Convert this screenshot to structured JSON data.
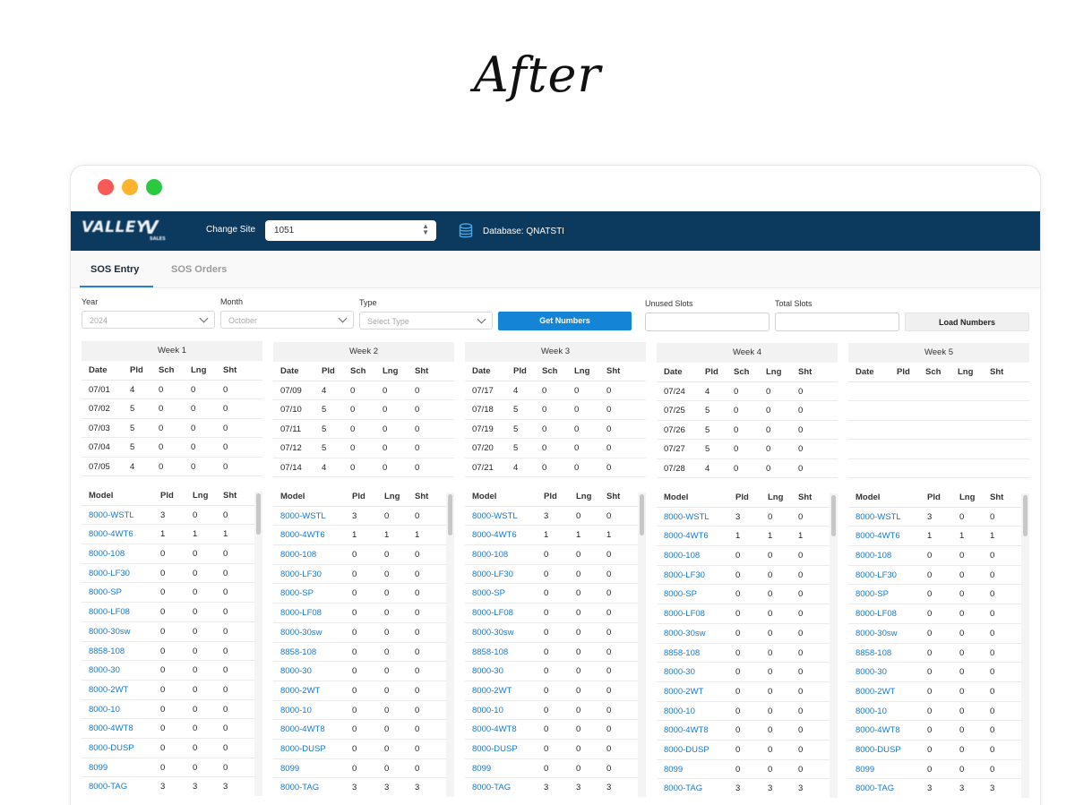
{
  "heading": "After",
  "appbar": {
    "logo_text": "VALLEY",
    "logo_mark": "V",
    "logo_sub": "SALES",
    "site_label": "Change Site",
    "site_value": "1051",
    "db_icon": "database-icon",
    "database_label": "Database: QNATSTI"
  },
  "tabs": [
    {
      "label": "SOS Entry",
      "active": true
    },
    {
      "label": "SOS Orders",
      "active": false
    }
  ],
  "filters": {
    "year_label": "Year",
    "year_value": "2024",
    "month_label": "Month",
    "month_value": "October",
    "type_label": "Type",
    "type_placeholder": "Select Type",
    "get_numbers": "Get Numbers",
    "unused_label": "Unused Slots",
    "total_label": "Total Slots",
    "load_numbers": "Load Numbers"
  },
  "date_columns": [
    "Date",
    "Pld",
    "Sch",
    "Lng",
    "Sht"
  ],
  "model_columns": [
    "Model",
    "Pld",
    "Lng",
    "Sht"
  ],
  "weeks": [
    {
      "title": "Week 1",
      "days": [
        [
          "07/01",
          "4",
          "0",
          "0",
          "0"
        ],
        [
          "07/02",
          "5",
          "0",
          "0",
          "0"
        ],
        [
          "07/03",
          "5",
          "0",
          "0",
          "0"
        ],
        [
          "07/04",
          "5",
          "0",
          "0",
          "0"
        ],
        [
          "07/05",
          "4",
          "0",
          "0",
          "0"
        ]
      ]
    },
    {
      "title": "Week 2",
      "days": [
        [
          "07/09",
          "4",
          "0",
          "0",
          "0"
        ],
        [
          "07/10",
          "5",
          "0",
          "0",
          "0"
        ],
        [
          "07/11",
          "5",
          "0",
          "0",
          "0"
        ],
        [
          "07/12",
          "5",
          "0",
          "0",
          "0"
        ],
        [
          "07/14",
          "4",
          "0",
          "0",
          "0"
        ]
      ]
    },
    {
      "title": "Week 3",
      "days": [
        [
          "07/17",
          "4",
          "0",
          "0",
          "0"
        ],
        [
          "07/18",
          "5",
          "0",
          "0",
          "0"
        ],
        [
          "07/19",
          "5",
          "0",
          "0",
          "0"
        ],
        [
          "07/20",
          "5",
          "0",
          "0",
          "0"
        ],
        [
          "07/21",
          "4",
          "0",
          "0",
          "0"
        ]
      ]
    },
    {
      "title": "Week 4",
      "days": [
        [
          "07/24",
          "4",
          "0",
          "0",
          "0"
        ],
        [
          "07/25",
          "5",
          "0",
          "0",
          "0"
        ],
        [
          "07/26",
          "5",
          "0",
          "0",
          "0"
        ],
        [
          "07/27",
          "5",
          "0",
          "0",
          "0"
        ],
        [
          "07/28",
          "4",
          "0",
          "0",
          "0"
        ]
      ]
    },
    {
      "title": "Week 5",
      "days": []
    }
  ],
  "models": [
    [
      "8000-WSTL",
      "3",
      "0",
      "0"
    ],
    [
      "8000-4WT6",
      "1",
      "1",
      "1"
    ],
    [
      "8000-108",
      "0",
      "0",
      "0"
    ],
    [
      "8000-LF30",
      "0",
      "0",
      "0"
    ],
    [
      "8000-SP",
      "0",
      "0",
      "0"
    ],
    [
      "8000-LF08",
      "0",
      "0",
      "0"
    ],
    [
      "8000-30sw",
      "0",
      "0",
      "0"
    ],
    [
      "8858-108",
      "0",
      "0",
      "0"
    ],
    [
      "8000-30",
      "0",
      "0",
      "0"
    ],
    [
      "8000-2WT",
      "0",
      "0",
      "0"
    ],
    [
      "8000-10",
      "0",
      "0",
      "0"
    ],
    [
      "8000-4WT8",
      "0",
      "0",
      "0"
    ],
    [
      "8000-DUSP",
      "0",
      "0",
      "0"
    ],
    [
      "8099",
      "0",
      "0",
      "0"
    ],
    [
      "8000-TAG",
      "3",
      "3",
      "3"
    ]
  ]
}
